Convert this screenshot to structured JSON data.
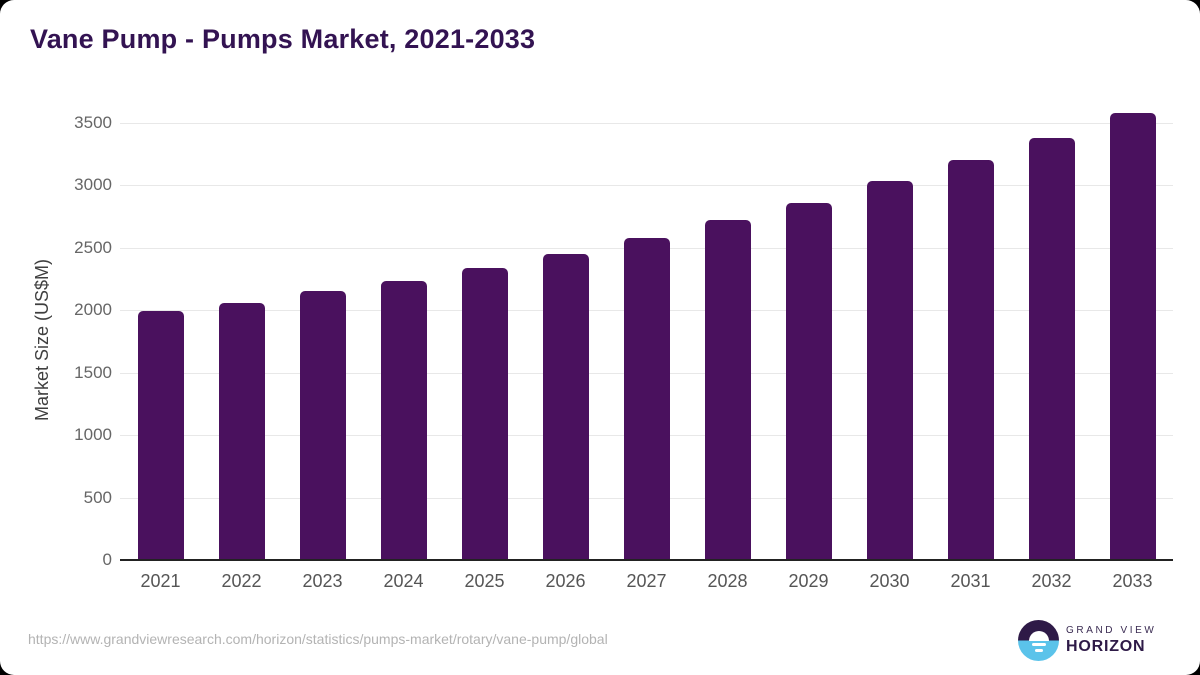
{
  "header": {
    "title": "Vane Pump - Pumps Market, 2021-2033"
  },
  "chart_data": {
    "type": "bar",
    "title": "Vane Pump - Pumps Market, 2021-2033",
    "categories": [
      "2021",
      "2022",
      "2023",
      "2024",
      "2025",
      "2026",
      "2027",
      "2028",
      "2029",
      "2030",
      "2031",
      "2032",
      "2033"
    ],
    "values": [
      1990,
      2060,
      2150,
      2230,
      2340,
      2450,
      2580,
      2720,
      2860,
      3030,
      3200,
      3380,
      3580
    ],
    "xlabel": "",
    "ylabel": "Market Size (US$M)",
    "ylim": [
      0,
      3600
    ],
    "yticks": [
      0,
      500,
      1000,
      1500,
      2000,
      2500,
      3000,
      3500
    ],
    "grid": true,
    "legend": "none",
    "bar_color": "#4A115E"
  },
  "footer": {
    "source_url": "https://www.grandviewresearch.com/horizon/statistics/pumps-market/rotary/vane-pump/global",
    "logo": {
      "line1": "GRAND VIEW",
      "line2": "HORIZON"
    }
  },
  "colors": {
    "background": "#000000",
    "card": "#FFFFFF",
    "bar": "#4A115E",
    "title_text": "#331352",
    "axis_line": "#222222",
    "gridline": "#E8E8E8",
    "tick_text": "#666666",
    "url_text": "#B3B3B3",
    "logo_purple": "#2E1A47",
    "logo_blue": "#5BC3EA"
  }
}
